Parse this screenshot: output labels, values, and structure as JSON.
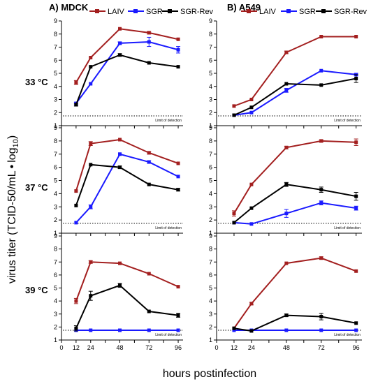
{
  "figure": {
    "ylabel_main": "virus titer (TCID-50/mL",
    "ylabel_bullet": "•",
    "ylabel_log": "log",
    "ylabel_sub": "10",
    "ylabel_close": ")",
    "xlabel": "hours postinfection",
    "lod_label": "Limit of detection"
  },
  "colors": {
    "LAIV": "#a31f1f",
    "SGR": "#1a1aff",
    "SGR-Rev": "#000000"
  },
  "chart_data": {
    "type": "line",
    "columns": [
      {
        "title": "A) MDCK",
        "legend": [
          "LAIV",
          "SGR",
          "SGR-Rev"
        ]
      },
      {
        "title": "B) A549",
        "legend": [
          "LAIV",
          "SGR",
          "SGR-Rev"
        ]
      }
    ],
    "rows": [
      "33 °C",
      "37 °C",
      "39 °C"
    ],
    "x_ticks": [
      0,
      12,
      24,
      36,
      48,
      60,
      72,
      84,
      96
    ],
    "x_ticklabels": [
      "0",
      "12",
      "24",
      "",
      "48",
      "",
      "72",
      "",
      "96"
    ],
    "xlim": [
      0,
      100
    ],
    "y_ticks": [
      1,
      2,
      3,
      4,
      5,
      6,
      7,
      8,
      9
    ],
    "ylim": [
      1,
      9
    ],
    "limit_of_detection": 1.75,
    "x": [
      12,
      24,
      48,
      72,
      96
    ],
    "panels": [
      {
        "row": 0,
        "col": 0,
        "series": [
          {
            "name": "LAIV",
            "values": [
              4.3,
              6.2,
              8.4,
              8.1,
              7.6
            ],
            "err": [
              0.15,
              0.05,
              0.05,
              0.1,
              0.05
            ]
          },
          {
            "name": "SGR",
            "values": [
              2.7,
              4.2,
              7.3,
              7.4,
              6.8
            ],
            "err": [
              0.1,
              0.05,
              0.1,
              0.35,
              0.25
            ]
          },
          {
            "name": "SGR-Rev",
            "values": [
              2.6,
              5.5,
              6.4,
              5.8,
              5.5
            ],
            "err": [
              0.1,
              0.05,
              0.1,
              0.05,
              0.05
            ]
          }
        ]
      },
      {
        "row": 0,
        "col": 1,
        "series": [
          {
            "name": "LAIV",
            "values": [
              2.5,
              3.0,
              6.6,
              7.8,
              7.8
            ],
            "err": [
              0.05,
              0.05,
              0.1,
              0.05,
              0.05
            ]
          },
          {
            "name": "SGR",
            "values": [
              1.8,
              2.0,
              3.7,
              5.2,
              4.9
            ],
            "err": [
              0.05,
              0.05,
              0.15,
              0.05,
              0.1
            ]
          },
          {
            "name": "SGR-Rev",
            "values": [
              1.8,
              2.4,
              4.2,
              4.1,
              4.6
            ],
            "err": [
              0.05,
              0.05,
              0.05,
              0.05,
              0.3
            ]
          }
        ]
      },
      {
        "row": 1,
        "col": 0,
        "series": [
          {
            "name": "LAIV",
            "values": [
              4.2,
              7.8,
              8.1,
              7.1,
              6.3
            ],
            "err": [
              0.05,
              0.15,
              0.05,
              0.1,
              0.05
            ]
          },
          {
            "name": "SGR",
            "values": [
              1.8,
              3.0,
              7.0,
              6.4,
              5.3
            ],
            "err": [
              0.05,
              0.15,
              0.05,
              0.1,
              0.05
            ]
          },
          {
            "name": "SGR-Rev",
            "values": [
              3.1,
              6.2,
              6.0,
              4.7,
              4.3
            ],
            "err": [
              0.05,
              0.05,
              0.1,
              0.05,
              0.1
            ]
          }
        ]
      },
      {
        "row": 1,
        "col": 1,
        "series": [
          {
            "name": "LAIV",
            "values": [
              2.5,
              4.7,
              7.5,
              8.0,
              7.9
            ],
            "err": [
              0.2,
              0.05,
              0.1,
              0.1,
              0.25
            ]
          },
          {
            "name": "SGR",
            "values": [
              1.8,
              1.7,
              2.5,
              3.3,
              2.9
            ],
            "err": [
              0.05,
              0.05,
              0.3,
              0.15,
              0.15
            ]
          },
          {
            "name": "SGR-Rev",
            "values": [
              1.8,
              2.9,
              4.7,
              4.3,
              3.8
            ],
            "err": [
              0.05,
              0.05,
              0.15,
              0.2,
              0.3
            ]
          }
        ]
      },
      {
        "row": 2,
        "col": 0,
        "series": [
          {
            "name": "LAIV",
            "values": [
              4.0,
              7.0,
              6.9,
              6.1,
              5.1
            ],
            "err": [
              0.2,
              0.1,
              0.05,
              0.05,
              0.05
            ]
          },
          {
            "name": "SGR",
            "values": [
              1.75,
              1.75,
              1.75,
              1.75,
              1.75
            ],
            "err": [
              0,
              0,
              0,
              0,
              0
            ]
          },
          {
            "name": "SGR-Rev",
            "values": [
              1.9,
              4.4,
              5.2,
              3.2,
              2.9
            ],
            "err": [
              0.2,
              0.35,
              0.15,
              0.05,
              0.15
            ]
          }
        ]
      },
      {
        "row": 2,
        "col": 1,
        "series": [
          {
            "name": "LAIV",
            "values": [
              1.9,
              3.8,
              6.9,
              7.3,
              6.3
            ],
            "err": [
              0.05,
              0.1,
              0.05,
              0.1,
              0.05
            ]
          },
          {
            "name": "SGR",
            "values": [
              1.75,
              1.75,
              1.75,
              1.75,
              1.75
            ],
            "err": [
              0,
              0,
              0,
              0,
              0
            ]
          },
          {
            "name": "SGR-Rev",
            "values": [
              1.9,
              1.7,
              2.9,
              2.8,
              2.3
            ],
            "err": [
              0.05,
              0.05,
              0.1,
              0.25,
              0.05
            ]
          }
        ]
      }
    ]
  }
}
